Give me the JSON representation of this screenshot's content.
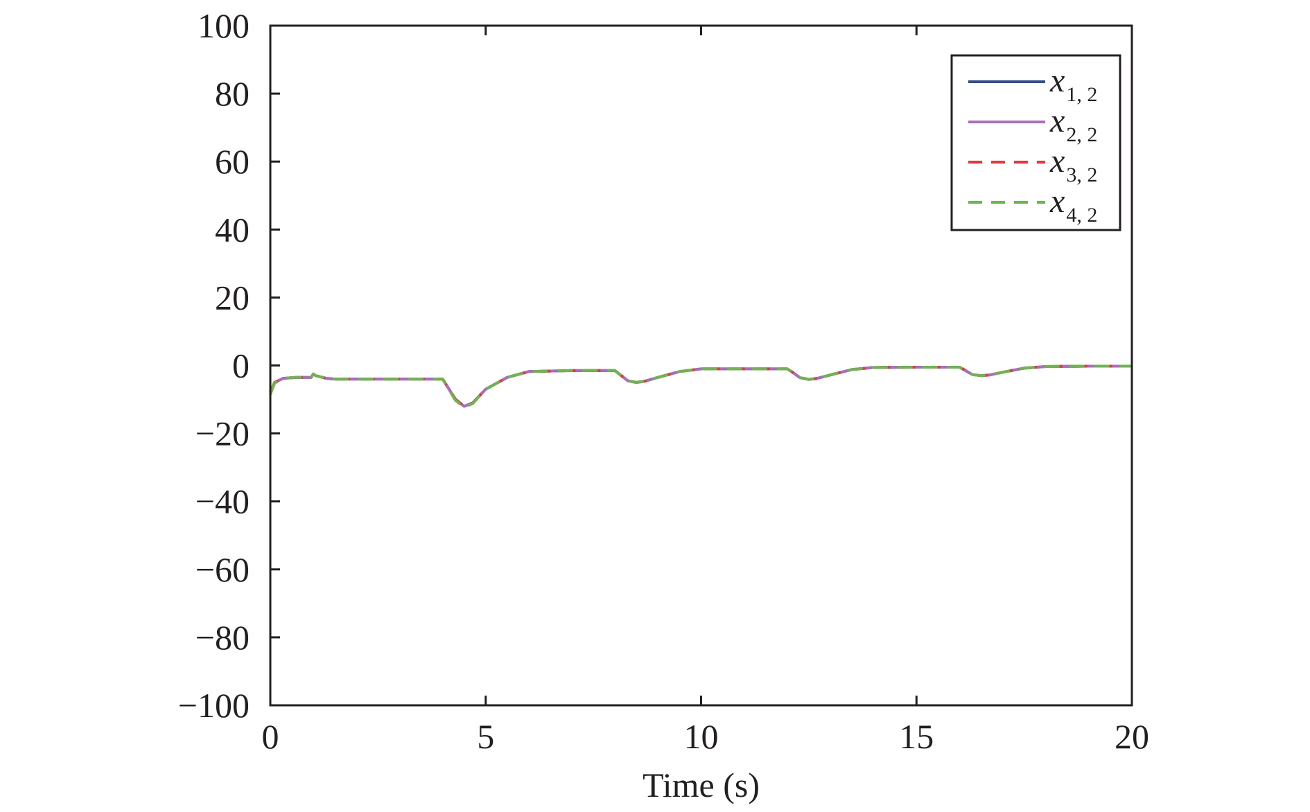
{
  "chart_data": {
    "type": "line",
    "title": "",
    "xlabel": "Time (s)",
    "ylabel": "",
    "xlim": [
      0,
      20
    ],
    "ylim": [
      -100,
      100
    ],
    "xticks": [
      0,
      5,
      10,
      15,
      20
    ],
    "yticks": [
      100,
      80,
      60,
      40,
      20,
      0,
      -20,
      -40,
      -60,
      -80,
      -100
    ],
    "xtick_labels": [
      "0",
      "5",
      "10",
      "15",
      "20"
    ],
    "ytick_labels": [
      "100",
      "80",
      "60",
      "40",
      "20",
      "0",
      "−20",
      "−40",
      "−60",
      "−80",
      "−100"
    ],
    "grid": false,
    "legend": {
      "position": "top-right",
      "frame": true
    },
    "x": [
      0,
      0.1,
      0.3,
      0.6,
      0.95,
      1.0,
      1.05,
      1.3,
      1.5,
      2.0,
      3.0,
      4.0,
      4.1,
      4.3,
      4.5,
      4.7,
      5.0,
      5.5,
      6.0,
      7.0,
      8.0,
      8.1,
      8.3,
      8.5,
      8.7,
      9.0,
      9.5,
      10.0,
      11.0,
      12.0,
      12.1,
      12.3,
      12.5,
      12.7,
      13.0,
      13.5,
      14.0,
      15.0,
      16.0,
      16.1,
      16.3,
      16.5,
      16.7,
      17.0,
      17.5,
      18.0,
      19.0,
      20.0
    ],
    "series": [
      {
        "name_main": "x",
        "name_sub": "1, 2",
        "color": "#2e4c9c",
        "dash": "solid",
        "values": [
          -8,
          -5,
          -3.8,
          -3.5,
          -3.5,
          -2.5,
          -3,
          -3.8,
          -4,
          -4,
          -4,
          -4,
          -6,
          -10,
          -12,
          -11,
          -7,
          -3.5,
          -1.8,
          -1.5,
          -1.5,
          -2.5,
          -4.5,
          -5,
          -4.6,
          -3.5,
          -1.8,
          -1,
          -1,
          -1,
          -1.8,
          -3.6,
          -4.1,
          -3.8,
          -2.8,
          -1.2,
          -0.6,
          -0.5,
          -0.5,
          -1.2,
          -2.7,
          -3,
          -2.8,
          -2,
          -0.8,
          -0.3,
          -0.2,
          -0.2
        ]
      },
      {
        "name_main": "x",
        "name_sub": "2, 2",
        "color": "#a86cc1",
        "dash": "solid",
        "values": [
          -8,
          -5,
          -3.8,
          -3.5,
          -3.5,
          -2.5,
          -3,
          -3.8,
          -4,
          -4,
          -4,
          -4,
          -6,
          -10,
          -12,
          -11,
          -7,
          -3.5,
          -1.8,
          -1.5,
          -1.5,
          -2.5,
          -4.5,
          -5,
          -4.6,
          -3.5,
          -1.8,
          -1,
          -1,
          -1,
          -1.8,
          -3.6,
          -4.1,
          -3.8,
          -2.8,
          -1.2,
          -0.6,
          -0.5,
          -0.5,
          -1.2,
          -2.7,
          -3,
          -2.8,
          -2,
          -0.8,
          -0.3,
          -0.2,
          -0.2
        ]
      },
      {
        "name_main": "x",
        "name_sub": "3, 2",
        "color": "#e8363a",
        "dash": "dashed",
        "values": [
          -8,
          -5,
          -3.8,
          -3.5,
          -3.5,
          -2.5,
          -3,
          -3.8,
          -4,
          -4,
          -4,
          -4,
          -6,
          -10,
          -12,
          -11,
          -7,
          -3.5,
          -1.8,
          -1.5,
          -1.5,
          -2.5,
          -4.5,
          -5,
          -4.6,
          -3.5,
          -1.8,
          -1,
          -1,
          -1,
          -1.8,
          -3.6,
          -4.1,
          -3.8,
          -2.8,
          -1.2,
          -0.6,
          -0.5,
          -0.5,
          -1.2,
          -2.7,
          -3,
          -2.8,
          -2,
          -0.8,
          -0.3,
          -0.2,
          -0.2
        ]
      },
      {
        "name_main": "x",
        "name_sub": "4, 2",
        "color": "#6db54e",
        "dash": "dashed",
        "values": [
          -8.5,
          -5.2,
          -3.8,
          -3.5,
          -3.5,
          -2.5,
          -3,
          -3.8,
          -4,
          -4,
          -4,
          -4,
          -6.2,
          -10.3,
          -12.3,
          -11.2,
          -7,
          -3.5,
          -1.8,
          -1.5,
          -1.5,
          -2.5,
          -4.5,
          -5,
          -4.6,
          -3.5,
          -1.8,
          -1,
          -1,
          -1,
          -1.8,
          -3.6,
          -4.1,
          -3.8,
          -2.8,
          -1.2,
          -0.6,
          -0.5,
          -0.5,
          -1.2,
          -2.7,
          -3,
          -2.8,
          -2,
          -0.8,
          -0.3,
          -0.2,
          -0.2
        ]
      }
    ]
  }
}
